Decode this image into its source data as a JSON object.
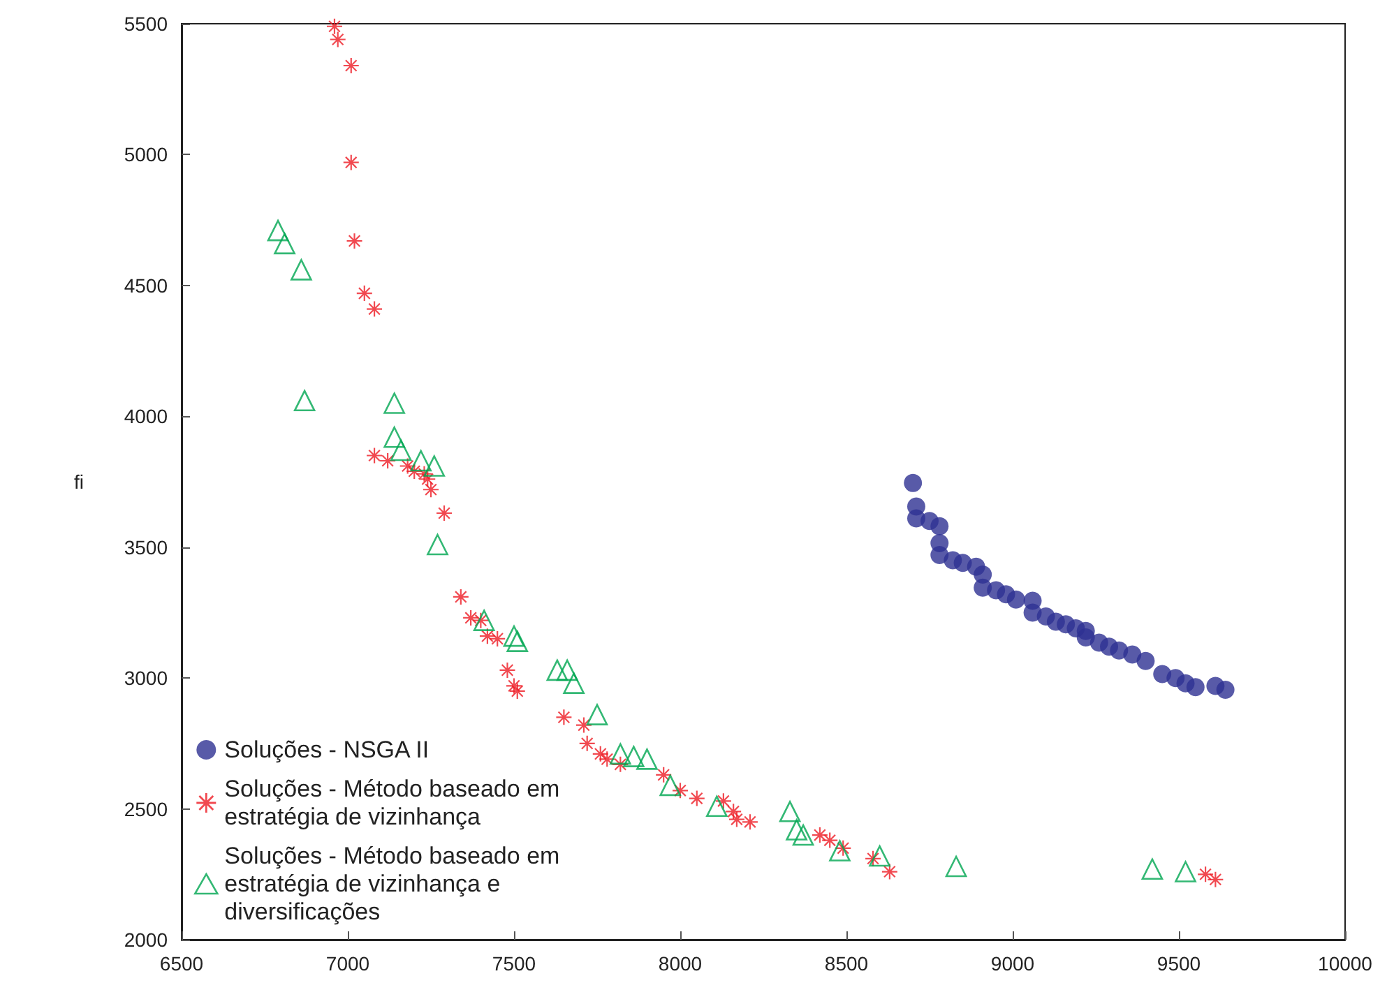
{
  "chart_data": {
    "type": "scatter",
    "ylabel": "fi",
    "xlim": [
      6500,
      10000
    ],
    "xticks": [
      6500,
      7000,
      7500,
      8000,
      8500,
      9000,
      9500,
      10000
    ],
    "ylim": [
      2000,
      5500
    ],
    "yticks": [
      2000,
      2500,
      3000,
      3500,
      4000,
      4500,
      5000,
      5500
    ],
    "grid": false,
    "legend": "bottom left",
    "series": [
      {
        "name": "Soluções - NSGA II",
        "color": "#2e3192",
        "marker": "circle",
        "x": [
          8700,
          8710,
          8710,
          8750,
          8780,
          8780,
          8780,
          8820,
          8850,
          8890,
          8910,
          8910,
          8950,
          8980,
          9010,
          9060,
          9060,
          9100,
          9130,
          9160,
          9190,
          9220,
          9220,
          9260,
          9290,
          9320,
          9360,
          9400,
          9450,
          9490,
          9520,
          9550,
          9610,
          9640
        ],
        "values": [
          3745,
          3655,
          3610,
          3600,
          3580,
          3515,
          3470,
          3450,
          3440,
          3425,
          3395,
          3345,
          3335,
          3320,
          3300,
          3295,
          3250,
          3235,
          3215,
          3205,
          3190,
          3180,
          3155,
          3135,
          3120,
          3105,
          3090,
          3065,
          3015,
          3000,
          2980,
          2965,
          2970,
          2955
        ]
      },
      {
        "name": "Soluções - Método baseado em estratégia de vizinhança",
        "color": "#ed1c24",
        "marker": "star",
        "x": [
          6960,
          6970,
          7010,
          7010,
          7020,
          7050,
          7080,
          7080,
          7120,
          7180,
          7200,
          7230,
          7240,
          7250,
          7290,
          7340,
          7370,
          7400,
          7420,
          7450,
          7480,
          7500,
          7510,
          7650,
          7710,
          7720,
          7760,
          7780,
          7820,
          7950,
          8000,
          8050,
          8130,
          8160,
          8170,
          8210,
          8420,
          8450,
          8490,
          8580,
          8630,
          9580,
          9610
        ],
        "values": [
          5490,
          5440,
          5340,
          4970,
          4670,
          4470,
          4410,
          3850,
          3830,
          3810,
          3790,
          3780,
          3760,
          3720,
          3630,
          3310,
          3230,
          3220,
          3160,
          3150,
          3030,
          2970,
          2950,
          2850,
          2820,
          2750,
          2710,
          2690,
          2670,
          2630,
          2570,
          2540,
          2530,
          2490,
          2460,
          2450,
          2400,
          2380,
          2350,
          2310,
          2260,
          2250,
          2230
        ]
      },
      {
        "name": "Soluções - Método baseado em estratégia de vizinhança e diversificações",
        "color": "#00a651",
        "marker": "triangle",
        "x": [
          6790,
          6810,
          6860,
          6870,
          7140,
          7140,
          7160,
          7220,
          7260,
          7270,
          7410,
          7500,
          7510,
          7630,
          7660,
          7680,
          7750,
          7820,
          7860,
          7900,
          7970,
          8110,
          8330,
          8350,
          8370,
          8480,
          8600,
          8830,
          9420,
          9520
        ],
        "values": [
          4710,
          4660,
          4560,
          4060,
          4050,
          3920,
          3870,
          3830,
          3810,
          3510,
          3220,
          3160,
          3140,
          3030,
          3030,
          2980,
          2860,
          2710,
          2700,
          2690,
          2590,
          2510,
          2490,
          2420,
          2400,
          2340,
          2320,
          2280,
          2270,
          2260
        ]
      }
    ]
  }
}
